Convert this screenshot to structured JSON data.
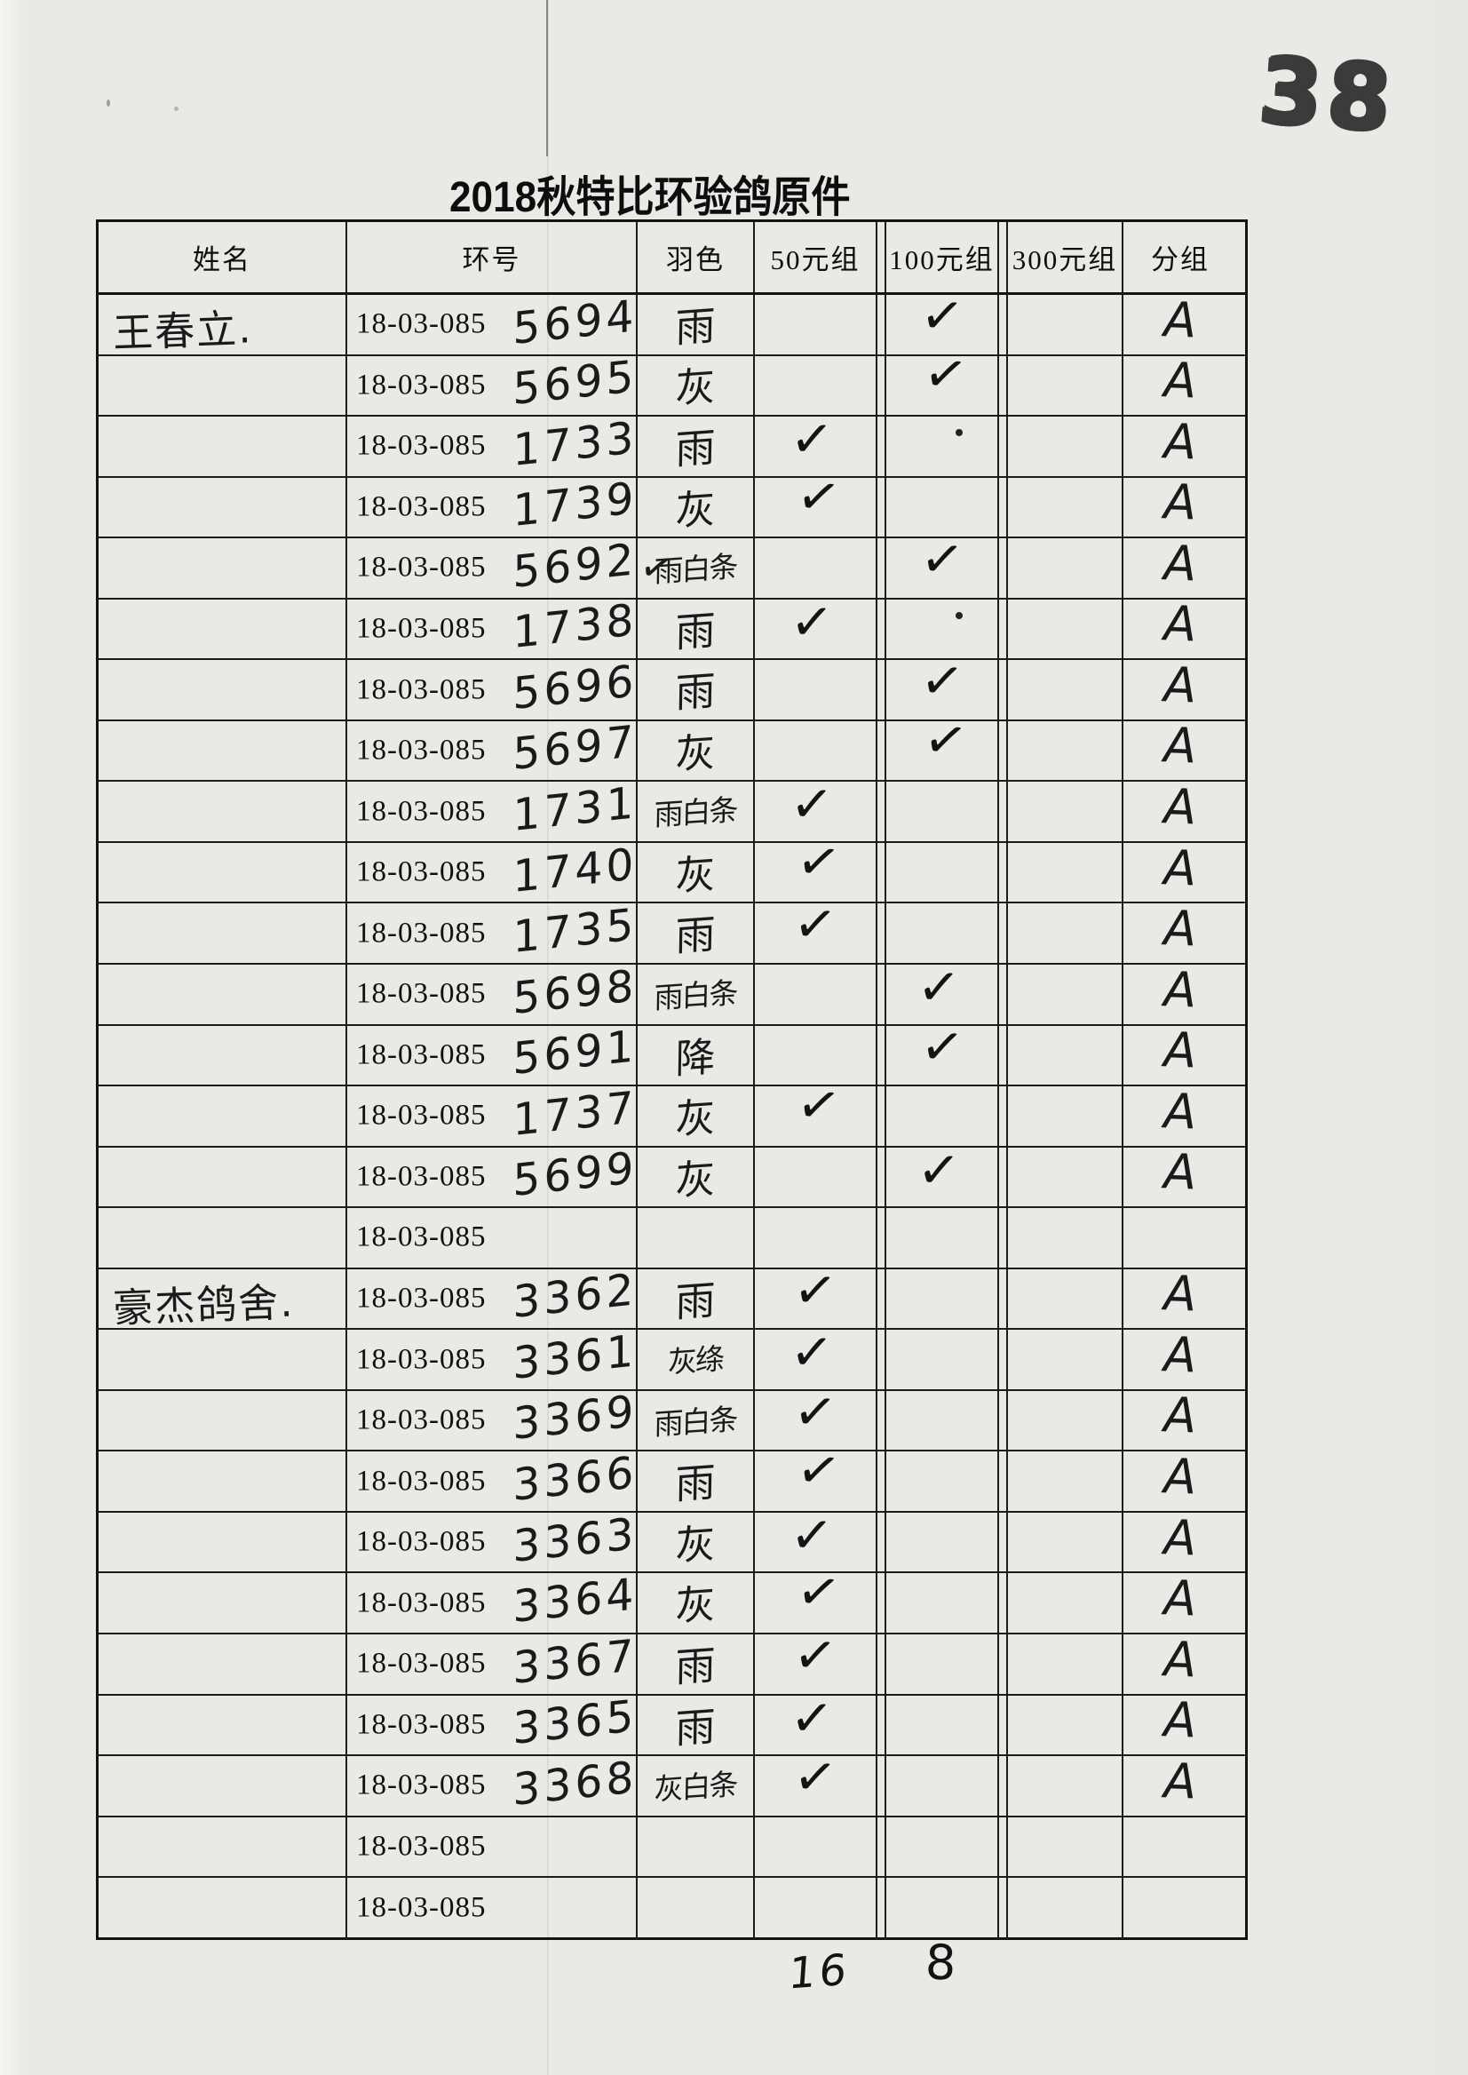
{
  "page": {
    "title": "2018秋特比环验鸽原件",
    "page_number": "38",
    "footer_numbers": [
      "16",
      "8"
    ],
    "paper_color": "#eae9e6",
    "ink_color": "#1a1a1a"
  },
  "icons": {
    "checkmark": "✓"
  },
  "table": {
    "headers": [
      "姓名",
      "环号",
      "羽色",
      "50元组",
      "100元组",
      "300元组",
      "分组"
    ],
    "ring_prefix": "18-03-085",
    "rows": [
      {
        "name": "王春立.",
        "ring": "5694",
        "color": "雨",
        "check": "100",
        "group": "A"
      },
      {
        "name": "",
        "ring": "5695",
        "color": "灰",
        "check": "100",
        "group": "A"
      },
      {
        "name": "",
        "ring": "1733",
        "color": "雨",
        "check": "50",
        "group": "A",
        "dot_100": true
      },
      {
        "name": "",
        "ring": "1739",
        "color": "灰",
        "check": "50",
        "group": "A"
      },
      {
        "name": "",
        "ring": "5692",
        "color": "雨白条",
        "check": "100",
        "group": "A",
        "ring_check": true
      },
      {
        "name": "",
        "ring": "1738",
        "color": "雨",
        "check": "50",
        "group": "A",
        "dot_100": true
      },
      {
        "name": "",
        "ring": "5696",
        "color": "雨",
        "check": "100",
        "group": "A"
      },
      {
        "name": "",
        "ring": "5697",
        "color": "灰",
        "check": "100",
        "group": "A"
      },
      {
        "name": "",
        "ring": "1731",
        "color": "雨白条",
        "check": "50",
        "group": "A"
      },
      {
        "name": "",
        "ring": "1740",
        "color": "灰",
        "check": "50",
        "group": "A"
      },
      {
        "name": "",
        "ring": "1735",
        "color": "雨",
        "check": "50",
        "group": "A"
      },
      {
        "name": "",
        "ring": "5698",
        "color": "雨白条",
        "check": "100",
        "group": "A"
      },
      {
        "name": "",
        "ring": "5691",
        "color": "降",
        "check": "100",
        "group": "A"
      },
      {
        "name": "",
        "ring": "1737",
        "color": "灰",
        "check": "50",
        "group": "A"
      },
      {
        "name": "",
        "ring": "5699",
        "color": "灰",
        "check": "100",
        "group": "A"
      },
      {
        "name": "",
        "ring": "",
        "color": "",
        "check": "",
        "group": ""
      },
      {
        "name": "豪杰鸽舍.",
        "ring": "3362",
        "color": "雨",
        "check": "50",
        "group": "A"
      },
      {
        "name": "",
        "ring": "3361",
        "color": "灰绦",
        "check": "50",
        "group": "A"
      },
      {
        "name": "",
        "ring": "3369",
        "color": "雨白条",
        "check": "50",
        "group": "A"
      },
      {
        "name": "",
        "ring": "3366",
        "color": "雨",
        "check": "50",
        "group": "A"
      },
      {
        "name": "",
        "ring": "3363",
        "color": "灰",
        "check": "50",
        "group": "A"
      },
      {
        "name": "",
        "ring": "3364",
        "color": "灰",
        "check": "50",
        "group": "A"
      },
      {
        "name": "",
        "ring": "3367",
        "color": "雨",
        "check": "50",
        "group": "A"
      },
      {
        "name": "",
        "ring": "3365",
        "color": "雨",
        "check": "50",
        "group": "A"
      },
      {
        "name": "",
        "ring": "3368",
        "color": "灰白条",
        "check": "50",
        "group": "A"
      },
      {
        "name": "",
        "ring": "",
        "color": "",
        "check": "",
        "group": ""
      },
      {
        "name": "",
        "ring": "",
        "color": "",
        "check": "",
        "group": ""
      }
    ]
  }
}
